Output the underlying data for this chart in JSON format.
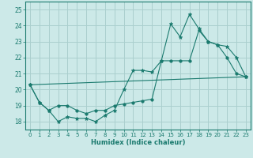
{
  "xlabel": "Humidex (Indice chaleur)",
  "background_color": "#cce9e8",
  "grid_color": "#aacfce",
  "line_color": "#1a7a6e",
  "xlim": [
    -0.5,
    23.5
  ],
  "ylim": [
    17.5,
    25.5
  ],
  "yticks": [
    18,
    19,
    20,
    21,
    22,
    23,
    24,
    25
  ],
  "xticks": [
    0,
    1,
    2,
    3,
    4,
    5,
    6,
    7,
    8,
    9,
    10,
    11,
    12,
    13,
    14,
    15,
    16,
    17,
    18,
    19,
    20,
    21,
    22,
    23
  ],
  "series1_x": [
    0,
    1,
    2,
    3,
    4,
    5,
    6,
    7,
    8,
    9,
    10,
    11,
    12,
    13,
    14,
    15,
    16,
    17,
    18,
    19,
    20,
    21,
    22,
    23
  ],
  "series1_y": [
    20.3,
    19.2,
    18.7,
    18.0,
    18.3,
    18.2,
    18.2,
    18.0,
    18.4,
    18.7,
    20.0,
    21.2,
    21.2,
    21.1,
    21.8,
    24.1,
    23.3,
    24.7,
    23.8,
    23.0,
    22.8,
    22.7,
    22.0,
    20.8
  ],
  "series2_x": [
    0,
    1,
    2,
    3,
    4,
    5,
    6,
    7,
    8,
    9,
    10,
    11,
    12,
    13,
    14,
    15,
    16,
    17,
    18,
    19,
    20,
    21,
    22,
    23
  ],
  "series2_y": [
    20.3,
    19.2,
    18.7,
    19.0,
    19.0,
    18.7,
    18.5,
    18.7,
    18.7,
    19.0,
    19.1,
    19.2,
    19.3,
    19.4,
    21.8,
    21.8,
    21.8,
    21.8,
    23.7,
    23.0,
    22.8,
    22.0,
    21.0,
    20.8
  ],
  "series3_x": [
    0,
    23
  ],
  "series3_y": [
    20.3,
    20.8
  ]
}
